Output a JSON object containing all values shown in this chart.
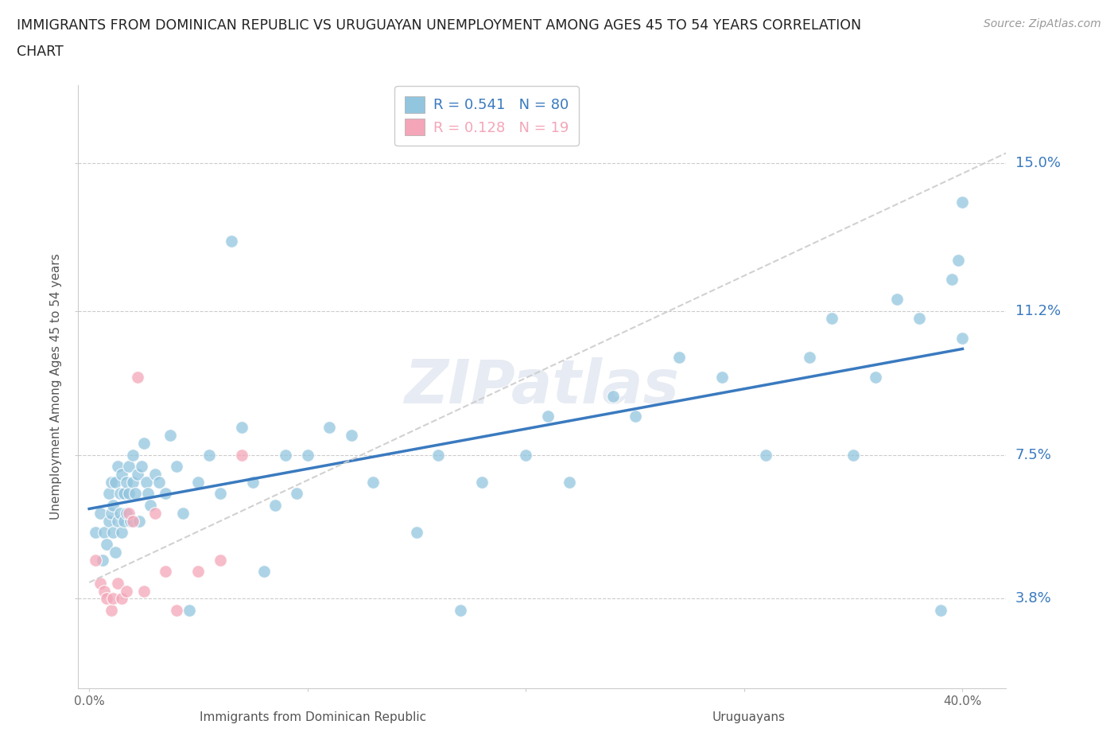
{
  "title_line1": "IMMIGRANTS FROM DOMINICAN REPUBLIC VS URUGUAYAN UNEMPLOYMENT AMONG AGES 45 TO 54 YEARS CORRELATION",
  "title_line2": "CHART",
  "source": "Source: ZipAtlas.com",
  "xlabel_ticks": [
    "0.0%",
    "",
    "",
    "",
    "40.0%"
  ],
  "xlabel_tick_vals": [
    0.0,
    0.1,
    0.2,
    0.3,
    0.4
  ],
  "ylabel_ticks": [
    "3.8%",
    "7.5%",
    "11.2%",
    "15.0%"
  ],
  "ylabel_tick_vals": [
    0.038,
    0.075,
    0.112,
    0.15
  ],
  "ylabel": "Unemployment Among Ages 45 to 54 years",
  "xlabel_label_left": "Immigrants from Dominican Republic",
  "xlabel_label_right": "Uruguayans",
  "legend_r1": "0.541",
  "legend_n1": "80",
  "legend_r2": "0.128",
  "legend_n2": "19",
  "color_blue": "#92c5de",
  "color_pink": "#f4a6b8",
  "color_blue_line": "#3a7abf",
  "color_pink_dashed": "#cccccc",
  "watermark": "ZIPatlas",
  "blue_scatter_x": [
    0.003,
    0.005,
    0.006,
    0.007,
    0.008,
    0.009,
    0.009,
    0.01,
    0.01,
    0.011,
    0.011,
    0.012,
    0.012,
    0.013,
    0.013,
    0.014,
    0.014,
    0.015,
    0.015,
    0.016,
    0.016,
    0.017,
    0.017,
    0.018,
    0.018,
    0.019,
    0.02,
    0.02,
    0.021,
    0.022,
    0.023,
    0.024,
    0.025,
    0.026,
    0.027,
    0.028,
    0.03,
    0.032,
    0.035,
    0.037,
    0.04,
    0.043,
    0.046,
    0.05,
    0.055,
    0.06,
    0.065,
    0.07,
    0.075,
    0.08,
    0.085,
    0.09,
    0.095,
    0.1,
    0.11,
    0.12,
    0.13,
    0.15,
    0.16,
    0.17,
    0.18,
    0.2,
    0.21,
    0.22,
    0.24,
    0.25,
    0.27,
    0.29,
    0.31,
    0.33,
    0.34,
    0.35,
    0.36,
    0.37,
    0.38,
    0.39,
    0.395,
    0.398,
    0.4,
    0.4
  ],
  "blue_scatter_y": [
    0.055,
    0.06,
    0.048,
    0.055,
    0.052,
    0.058,
    0.065,
    0.06,
    0.068,
    0.055,
    0.062,
    0.05,
    0.068,
    0.058,
    0.072,
    0.06,
    0.065,
    0.055,
    0.07,
    0.058,
    0.065,
    0.06,
    0.068,
    0.065,
    0.072,
    0.058,
    0.068,
    0.075,
    0.065,
    0.07,
    0.058,
    0.072,
    0.078,
    0.068,
    0.065,
    0.062,
    0.07,
    0.068,
    0.065,
    0.08,
    0.072,
    0.06,
    0.035,
    0.068,
    0.075,
    0.065,
    0.13,
    0.082,
    0.068,
    0.045,
    0.062,
    0.075,
    0.065,
    0.075,
    0.082,
    0.08,
    0.068,
    0.055,
    0.075,
    0.035,
    0.068,
    0.075,
    0.085,
    0.068,
    0.09,
    0.085,
    0.1,
    0.095,
    0.075,
    0.1,
    0.11,
    0.075,
    0.095,
    0.115,
    0.11,
    0.035,
    0.12,
    0.125,
    0.105,
    0.14
  ],
  "pink_scatter_x": [
    0.003,
    0.005,
    0.007,
    0.008,
    0.01,
    0.011,
    0.013,
    0.015,
    0.017,
    0.018,
    0.02,
    0.022,
    0.025,
    0.03,
    0.035,
    0.04,
    0.05,
    0.06,
    0.07
  ],
  "pink_scatter_y": [
    0.048,
    0.042,
    0.04,
    0.038,
    0.035,
    0.038,
    0.042,
    0.038,
    0.04,
    0.06,
    0.058,
    0.095,
    0.04,
    0.06,
    0.045,
    0.035,
    0.045,
    0.048,
    0.075
  ]
}
